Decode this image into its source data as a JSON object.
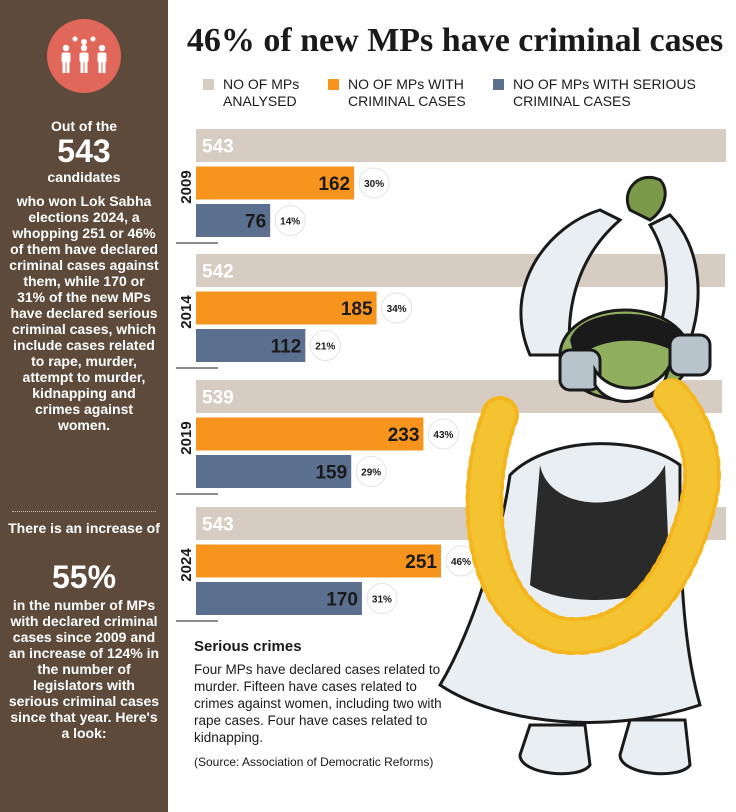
{
  "sidebar": {
    "intro": "Out of the",
    "total": "543",
    "candidates": "candidates",
    "paragraph1": "who won Lok Sabha elections 2024, a whopping 251 or 46% of them have declared criminal cases against them, while 170 or 31% of the new MPs have declared serious criminal cases, which include cases related to rape, murder, attempt to murder, kidnapping and crimes against women.",
    "increase_intro": "There is an increase of",
    "increase_value": "55%",
    "paragraph2": "in the number of MPs with declared criminal cases since 2009 and an increase of 124% in the number of legislators with serious criminal cases since that year. Here's a look:"
  },
  "note": {
    "title": "Serious crimes",
    "body": "Four MPs have declared cases related to murder. Fifteen have cases related to crimes against women, including two with rape cases. Four have cases related to kidnapping.",
    "source": "(Source: Association of Democratic Reforms)"
  },
  "colors": {
    "sidebar": "#5e4a3b",
    "analysed": "#d6ccc2",
    "criminal": "#f7941d",
    "serious": "#5b6f8f",
    "icon": "#e0675a"
  },
  "chart_data": {
    "type": "bar",
    "orientation": "horizontal",
    "title": "46% of new MPs have criminal cases",
    "categories": [
      "2009",
      "2014",
      "2019",
      "2024"
    ],
    "series": [
      {
        "name": "NO OF MPs ANALYSED",
        "values": [
          543,
          542,
          539,
          543
        ],
        "percent_labels": [
          "",
          "",
          "",
          ""
        ]
      },
      {
        "name": "NO OF MPs WITH CRIMINAL CASES",
        "values": [
          162,
          185,
          233,
          251
        ],
        "percent_labels": [
          "30%",
          "34%",
          "43%",
          "46%"
        ]
      },
      {
        "name": "NO OF MPs WITH SERIOUS CRIMINAL CASES",
        "values": [
          76,
          112,
          159,
          170
        ],
        "percent_labels": [
          "14%",
          "21%",
          "29%",
          "31%"
        ]
      }
    ],
    "legend_position": "top",
    "grid": false
  }
}
